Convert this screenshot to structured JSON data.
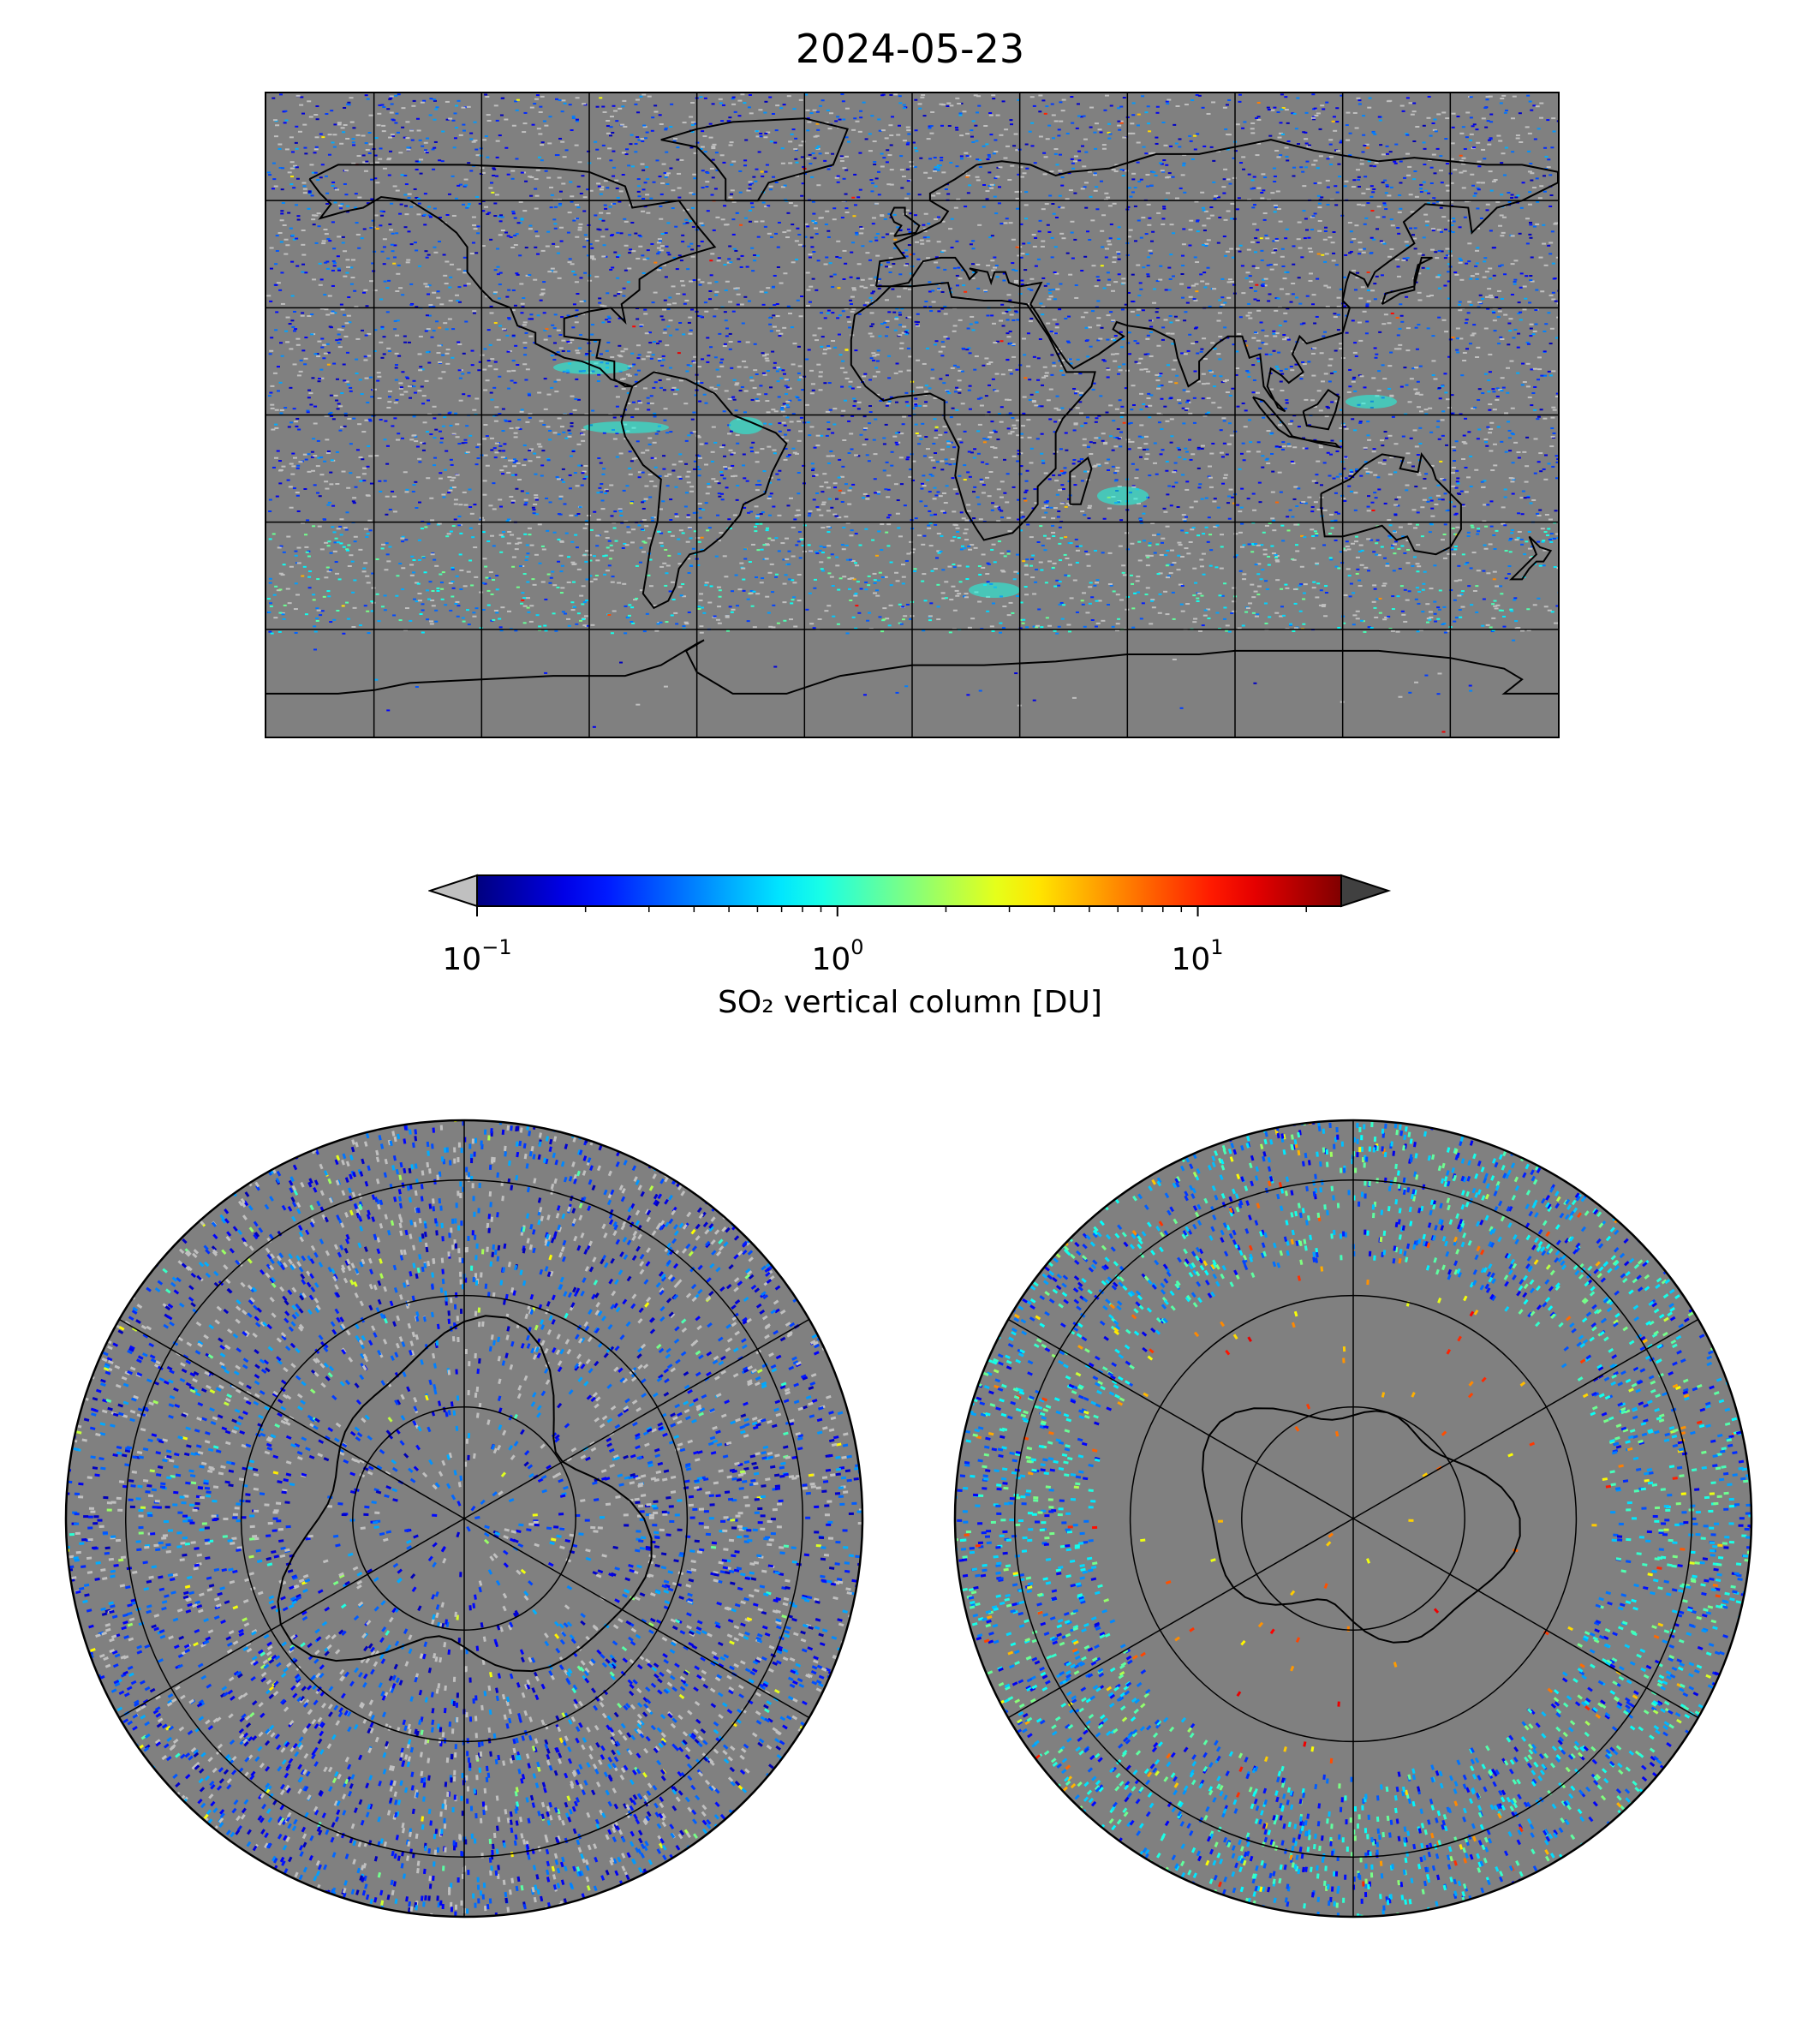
{
  "title": "2024-05-23",
  "colorbar": {
    "label": "SO₂ vertical column [DU]",
    "scale": "log",
    "colormap": "jet",
    "under_color": "#c0c0c0",
    "over_color": "#404040",
    "range": [
      0.1,
      25
    ],
    "ticks": [
      {
        "base": "10",
        "exp": "−1",
        "value": 0.1
      },
      {
        "base": "10",
        "exp": "0",
        "value": 1
      },
      {
        "base": "10",
        "exp": "1",
        "value": 10
      }
    ]
  },
  "colors": {
    "land_ocean_fill": "#808080",
    "coastline": "#000000",
    "gridline": "#000000",
    "no_data": "#c0c0c0"
  },
  "maps": [
    {
      "projection": "plate-carree",
      "extent_lon": [
        -180,
        180
      ],
      "extent_lat": [
        -90,
        90
      ],
      "grid_lon_step": 30,
      "grid_lat_step": 30
    },
    {
      "projection": "north-polar-stereographic",
      "hemisphere": "north"
    },
    {
      "projection": "south-polar-stereographic",
      "hemisphere": "south"
    }
  ]
}
